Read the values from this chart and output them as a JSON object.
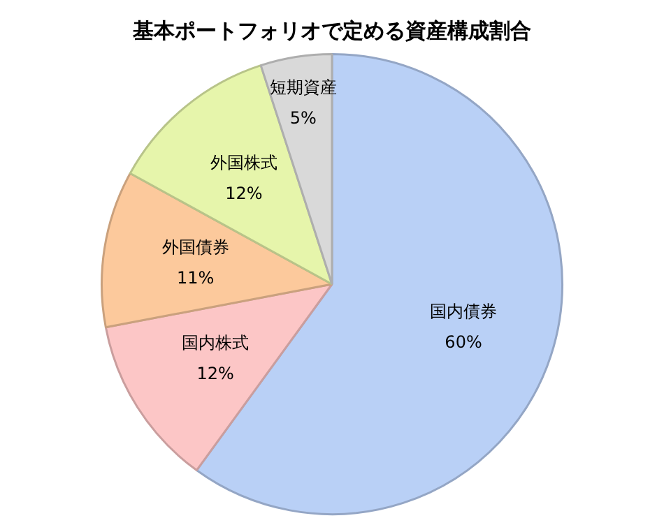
{
  "chart_data": {
    "type": "pie",
    "title": "基本ポートフォリオで定める資産構成割合",
    "categories": [
      "国内債券",
      "国内株式",
      "外国債券",
      "外国株式",
      "短期資産"
    ],
    "values": [
      60,
      12,
      11,
      12,
      5
    ],
    "colors": [
      "#b9d0f6",
      "#fcc6c6",
      "#fcc99c",
      "#e6f5ab",
      "#d9d9d9"
    ],
    "value_labels": [
      "60%",
      "12%",
      "11%",
      "12%",
      "5%"
    ],
    "legend": false
  }
}
